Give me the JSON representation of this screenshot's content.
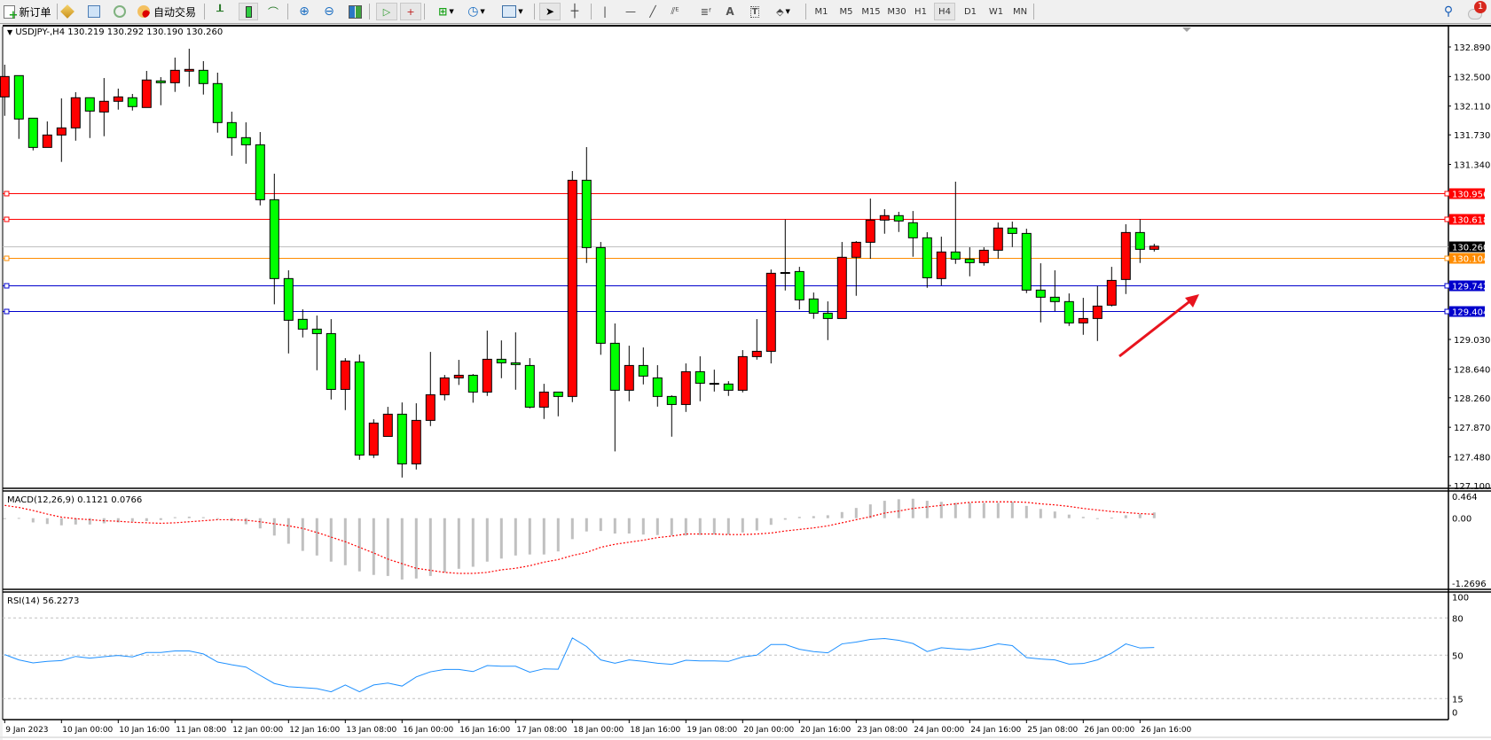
{
  "toolbar": {
    "new_order": {
      "label": "新订单",
      "icon": "new-order-icon"
    },
    "auto_trading": {
      "label": "自动交易",
      "icon": "auto-trading-icon"
    },
    "icons": [
      "market-watch-icon",
      "navigator-icon",
      "signals-icon",
      "bar-chart-icon",
      "candlestick-icon",
      "line-chart-icon",
      "zoom-in-icon",
      "zoom-out-icon",
      "tile-windows-icon",
      "auto-scroll-icon",
      "chart-shift-icon",
      "new-chart-icon",
      "periods-icon",
      "indicators-icon",
      "cursor-icon",
      "crosshair-icon",
      "vertical-line-icon",
      "horizontal-line-icon",
      "trendline-icon",
      "equidistant-channel-icon",
      "fibonacci-icon",
      "text-icon",
      "text-label-icon",
      "arrows-icon"
    ],
    "text_tool_label": "A",
    "timeframes": [
      "M1",
      "M5",
      "M15",
      "M30",
      "H1",
      "H4",
      "D1",
      "W1",
      "MN"
    ],
    "active_timeframe": "H4",
    "notification_count": "1"
  },
  "chart": {
    "header": "USDJPY-,H4  130.219 130.292 130.190 130.260",
    "symbol": "USDJPY-",
    "period": "H4",
    "price_axis_labels": [
      "132.890",
      "132.500",
      "132.110",
      "131.730",
      "131.340",
      "129.030",
      "128.640",
      "128.260",
      "127.870",
      "127.480",
      "127.100"
    ],
    "horizontal_lines": [
      {
        "price": "130.956",
        "color": "#ff0000"
      },
      {
        "price": "130.618",
        "color": "#ff0000"
      },
      {
        "price": "130.260",
        "color": "#c0c0c0",
        "label_bg": "#000000"
      },
      {
        "price": "130.104",
        "color": "#ff8c00"
      },
      {
        "price": "129.742",
        "color": "#0000cc"
      },
      {
        "price": "129.404",
        "color": "#0000cc"
      }
    ],
    "bull_color": "#ff0000",
    "bear_color": "#00ff00",
    "arrow_color": "#e8141e",
    "time_labels": [
      "9 Jan 2023",
      "10 Jan 00:00",
      "10 Jan 16:00",
      "11 Jan 08:00",
      "12 Jan 00:00",
      "12 Jan 16:00",
      "13 Jan 08:00",
      "16 Jan 00:00",
      "16 Jan 16:00",
      "17 Jan 08:00",
      "18 Jan 00:00",
      "18 Jan 16:00",
      "19 Jan 08:00",
      "20 Jan 00:00",
      "20 Jan 16:00",
      "23 Jan 08:00",
      "24 Jan 00:00",
      "24 Jan 16:00",
      "25 Jan 08:00",
      "26 Jan 00:00",
      "26 Jan 16:00"
    ]
  },
  "macd": {
    "header": "MACD(12,26,9) 0.1121 0.0766",
    "axis_labels": [
      "0.464",
      "0.00",
      "-1.2696"
    ]
  },
  "rsi": {
    "header": "RSI(14) 56.2273",
    "axis_labels": [
      "100",
      "80",
      "50",
      "15",
      "0"
    ]
  },
  "chart_data": {
    "type": "candlestick",
    "ylim": [
      127.1,
      132.89
    ],
    "ohlc": [
      [
        132.231,
        132.656,
        131.981,
        132.5
      ],
      [
        132.512,
        132.512,
        131.677,
        131.939
      ],
      [
        131.95,
        131.95,
        131.525,
        131.564
      ],
      [
        131.564,
        131.907,
        131.564,
        131.728
      ],
      [
        131.728,
        132.211,
        131.373,
        131.822
      ],
      [
        131.822,
        132.293,
        131.653,
        132.22
      ],
      [
        132.22,
        132.22,
        131.688,
        132.044
      ],
      [
        132.032,
        132.48,
        131.712,
        132.173
      ],
      [
        132.173,
        132.34,
        132.063,
        132.231
      ],
      [
        132.22,
        132.27,
        132.051,
        132.103
      ],
      [
        132.091,
        132.574,
        132.091,
        132.454
      ],
      [
        132.442,
        132.492,
        132.121,
        132.418
      ],
      [
        132.418,
        132.75,
        132.297,
        132.582
      ],
      [
        132.571,
        132.867,
        132.367,
        132.594
      ],
      [
        132.582,
        132.703,
        132.262,
        132.407
      ],
      [
        132.407,
        132.551,
        131.759,
        131.892
      ],
      [
        131.892,
        132.036,
        131.454,
        131.693
      ],
      [
        131.693,
        131.895,
        131.349,
        131.599
      ],
      [
        131.599,
        131.767,
        130.799,
        130.874
      ],
      [
        130.874,
        131.217,
        129.493,
        129.833
      ],
      [
        129.833,
        129.942,
        128.845,
        129.283
      ],
      [
        129.295,
        129.427,
        129.056,
        129.166
      ],
      [
        129.166,
        129.345,
        128.623,
        129.107
      ],
      [
        129.107,
        129.298,
        128.237,
        128.37
      ],
      [
        128.37,
        128.783,
        128.097,
        128.745
      ],
      [
        128.733,
        128.83,
        127.441,
        127.504
      ],
      [
        127.504,
        127.976,
        127.465,
        127.926
      ],
      [
        127.75,
        128.14,
        127.75,
        128.043
      ],
      [
        128.043,
        128.198,
        127.207,
        127.387
      ],
      [
        127.387,
        128.187,
        127.313,
        127.961
      ],
      [
        127.961,
        128.865,
        127.886,
        128.3
      ],
      [
        128.3,
        128.561,
        128.225,
        128.522
      ],
      [
        128.522,
        128.76,
        128.429,
        128.557
      ],
      [
        128.557,
        128.573,
        128.195,
        128.335
      ],
      [
        128.335,
        129.146,
        128.284,
        128.768
      ],
      [
        128.768,
        129.017,
        128.518,
        128.721
      ],
      [
        128.721,
        129.123,
        128.366,
        128.698
      ],
      [
        128.686,
        128.783,
        128.12,
        128.136
      ],
      [
        128.136,
        128.444,
        127.98,
        128.335
      ],
      [
        128.335,
        128.335,
        128.015,
        128.277
      ],
      [
        128.277,
        131.252,
        128.202,
        131.131
      ],
      [
        131.131,
        131.568,
        130.039,
        130.242
      ],
      [
        130.242,
        130.316,
        128.827,
        128.979
      ],
      [
        128.979,
        129.24,
        127.551,
        128.359
      ],
      [
        128.359,
        128.947,
        128.214,
        128.686
      ],
      [
        128.686,
        128.924,
        128.436,
        128.546
      ],
      [
        128.522,
        128.69,
        128.143,
        128.277
      ],
      [
        128.277,
        128.292,
        127.746,
        128.171
      ],
      [
        128.171,
        128.713,
        128.073,
        128.604
      ],
      [
        128.604,
        128.807,
        128.214,
        128.452
      ],
      [
        128.448,
        128.631,
        128.342,
        128.45
      ],
      [
        128.441,
        128.479,
        128.284,
        128.359
      ],
      [
        128.359,
        128.889,
        128.331,
        128.803
      ],
      [
        128.803,
        129.298,
        128.763,
        128.873
      ],
      [
        128.873,
        129.953,
        128.713,
        129.903
      ],
      [
        129.91,
        130.612,
        129.676,
        129.913
      ],
      [
        129.926,
        129.988,
        129.427,
        129.552
      ],
      [
        129.564,
        129.649,
        129.302,
        129.376
      ],
      [
        129.376,
        129.532,
        129.021,
        129.306
      ],
      [
        129.306,
        130.316,
        129.306,
        130.114
      ],
      [
        130.114,
        130.328,
        129.606,
        130.312
      ],
      [
        130.312,
        130.889,
        130.094,
        130.605
      ],
      [
        130.605,
        130.749,
        130.425,
        130.664
      ],
      [
        130.664,
        130.714,
        130.448,
        130.593
      ],
      [
        130.57,
        130.725,
        130.121,
        130.371
      ],
      [
        130.371,
        130.445,
        129.711,
        129.844
      ],
      [
        129.833,
        130.386,
        129.743,
        130.184
      ],
      [
        130.184,
        131.112,
        130.027,
        130.09
      ],
      [
        130.09,
        130.246,
        129.863,
        130.043
      ],
      [
        130.043,
        130.246,
        130.004,
        130.207
      ],
      [
        130.207,
        130.573,
        130.097,
        130.5
      ],
      [
        130.5,
        130.585,
        130.249,
        130.429
      ],
      [
        130.429,
        130.491,
        129.641,
        129.681
      ],
      [
        129.681,
        130.035,
        129.255,
        129.587
      ],
      [
        129.587,
        129.942,
        129.403,
        129.529
      ],
      [
        129.529,
        129.637,
        129.208,
        129.248
      ],
      [
        129.248,
        129.579,
        129.091,
        129.306
      ],
      [
        129.306,
        129.735,
        129.009,
        129.47
      ],
      [
        129.482,
        129.988,
        129.465,
        129.809
      ],
      [
        129.821,
        130.55,
        129.629,
        130.441
      ],
      [
        130.441,
        130.617,
        130.039,
        130.219
      ],
      [
        130.219,
        130.292,
        130.19,
        130.26
      ]
    ],
    "macd_histogram": [
      -0.01,
      0.005,
      -0.083,
      -0.114,
      -0.14,
      -0.124,
      -0.124,
      -0.1,
      -0.083,
      -0.067,
      -0.057,
      -0.036,
      0.02,
      0.03,
      0.02,
      -0.015,
      -0.057,
      -0.119,
      -0.2,
      -0.34,
      -0.5,
      -0.64,
      -0.73,
      -0.85,
      -0.92,
      -1.04,
      -1.11,
      -1.13,
      -1.2,
      -1.18,
      -1.13,
      -1.06,
      -0.99,
      -0.95,
      -0.85,
      -0.79,
      -0.73,
      -0.71,
      -0.71,
      -0.65,
      -0.41,
      -0.26,
      -0.25,
      -0.3,
      -0.3,
      -0.32,
      -0.33,
      -0.34,
      -0.34,
      -0.33,
      -0.32,
      -0.32,
      -0.28,
      -0.24,
      -0.13,
      -0.03,
      0.026,
      0.04,
      0.057,
      0.12,
      0.2,
      0.27,
      0.34,
      0.37,
      0.38,
      0.34,
      0.32,
      0.3,
      0.3,
      0.3,
      0.3,
      0.32,
      0.24,
      0.18,
      0.13,
      0.07,
      0.026,
      -0.01,
      0.01,
      0.057,
      0.08,
      0.1121
    ],
    "macd_signal": [
      0.25,
      0.21,
      0.15,
      0.08,
      0.02,
      -0.01,
      -0.03,
      -0.05,
      -0.06,
      -0.08,
      -0.09,
      -0.1,
      -0.09,
      -0.07,
      -0.05,
      -0.03,
      -0.03,
      -0.04,
      -0.07,
      -0.11,
      -0.15,
      -0.2,
      -0.28,
      -0.37,
      -0.46,
      -0.57,
      -0.68,
      -0.8,
      -0.89,
      -0.98,
      -1.02,
      -1.06,
      -1.08,
      -1.08,
      -1.06,
      -1.01,
      -0.98,
      -0.93,
      -0.86,
      -0.81,
      -0.73,
      -0.67,
      -0.57,
      -0.51,
      -0.47,
      -0.43,
      -0.38,
      -0.35,
      -0.31,
      -0.31,
      -0.31,
      -0.32,
      -0.32,
      -0.31,
      -0.29,
      -0.25,
      -0.22,
      -0.19,
      -0.15,
      -0.09,
      -0.03,
      0.03,
      0.1,
      0.14,
      0.19,
      0.22,
      0.25,
      0.28,
      0.31,
      0.32,
      0.32,
      0.32,
      0.31,
      0.28,
      0.26,
      0.23,
      0.19,
      0.16,
      0.13,
      0.11,
      0.09,
      0.0766
    ],
    "macd_ylim": [
      -1.2696,
      0.464
    ],
    "rsi": [
      50.5,
      46.2,
      43.8,
      45,
      45.7,
      49,
      47.6,
      48.8,
      49.8,
      48.6,
      52.2,
      52.2,
      53.4,
      53.4,
      51,
      44.5,
      42.3,
      40.4,
      33.7,
      27.2,
      24.6,
      23.9,
      23.1,
      20.5,
      26,
      20.5,
      26,
      27.5,
      25.1,
      32.5,
      36.6,
      38.5,
      38.5,
      36.8,
      41.6,
      41.1,
      41.1,
      36.3,
      39,
      38.7,
      63.9,
      57,
      46.2,
      43.5,
      46.2,
      45,
      43.5,
      42.6,
      45.9,
      45.4,
      45.4,
      45,
      48.6,
      50,
      58.6,
      58.6,
      54.8,
      52.9,
      51.9,
      59.1,
      60.6,
      62.7,
      63.4,
      62,
      59.4,
      52.9,
      56,
      55,
      54.3,
      56.2,
      59.1,
      57.7,
      48.1,
      46.9,
      46.2,
      42.8,
      43.3,
      46.2,
      51.7,
      59.1,
      55.8,
      56.2273
    ],
    "rsi_levels": [
      80,
      50,
      15
    ],
    "rsi_ylim": [
      0,
      100
    ]
  }
}
